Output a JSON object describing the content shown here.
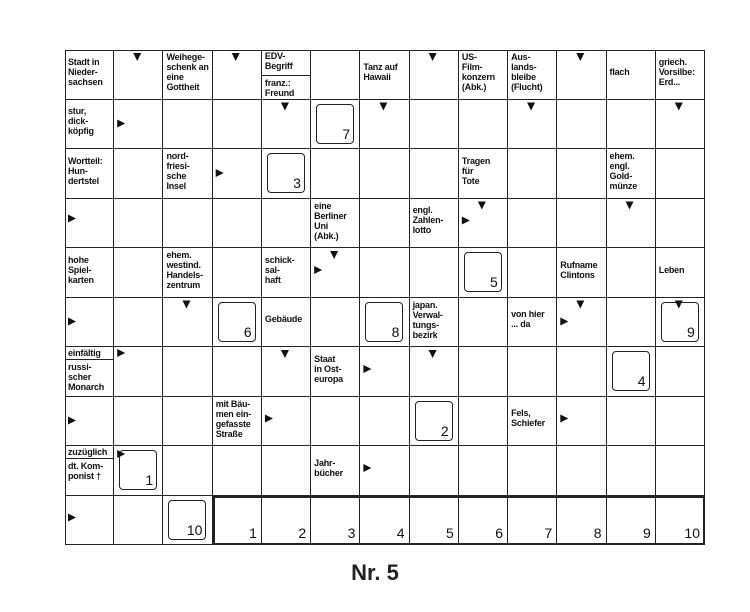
{
  "title": "Nr. 5",
  "grid": {
    "rows": [
      [
        {
          "clue": "Stadt in\nNieder-\nsachsen"
        },
        null,
        {
          "clue": "Weihege-\nschenk an\neine\nGottheit"
        },
        null,
        {
          "clues": [
            "EDV-\nBegriff",
            "franz.:\nFreund"
          ]
        },
        null,
        {
          "clue": "Tanz auf\nHawaii"
        },
        null,
        {
          "clue": "US-\nFilm-\nkonzern\n(Abk.)"
        },
        {
          "clue": "Aus-\nlands-\nbleibe\n(Flucht)"
        },
        null,
        {
          "clue": "flach"
        },
        {
          "clue": "griech.\nVorsilbe:\nErd..."
        }
      ],
      [
        {
          "clue": "stur,\ndick-\nköpfig"
        },
        null,
        null,
        null,
        null,
        {
          "box": 7
        },
        null,
        null,
        null,
        null,
        null,
        null,
        null
      ],
      [
        {
          "clue": "Wortteil:\nHun-\ndertstel"
        },
        null,
        {
          "clue": "nord-\nfriesi-\nsche\nInsel"
        },
        null,
        {
          "box": 3
        },
        null,
        null,
        null,
        {
          "clue": "Tragen\nfür\nTote"
        },
        null,
        null,
        {
          "clue": "ehem.\nengl.\nGold-\nmünze"
        },
        null
      ],
      [
        null,
        null,
        null,
        null,
        null,
        {
          "clue": "eine\nBerliner\nUni\n(Abk.)"
        },
        null,
        {
          "clue": "engl.\nZahlen-\nlotto"
        },
        null,
        null,
        null,
        null,
        null
      ],
      [
        {
          "clue": "hohe\nSpiel-\nkarten"
        },
        null,
        {
          "clue": "ehem.\nwestind.\nHandels-\nzentrum"
        },
        null,
        {
          "clue": "schick-\nsal-\nhaft"
        },
        null,
        null,
        null,
        {
          "box": 5
        },
        null,
        {
          "clue": "Rufname\nClintons"
        },
        null,
        {
          "clue": "Leben"
        }
      ],
      [
        null,
        null,
        null,
        {
          "box": 6
        },
        {
          "clue": "Gebäude"
        },
        null,
        {
          "box": 8
        },
        {
          "clue": "japan.\nVerwal-\ntungs-\nbezirk"
        },
        null,
        {
          "clue": "von hier\n... da"
        },
        null,
        null,
        {
          "box": 9
        }
      ],
      [
        {
          "clues": [
            "einfältig",
            "russi-\nscher\nMonarch"
          ]
        },
        null,
        null,
        null,
        null,
        {
          "clue": "Staat\nin Ost-\neuropa"
        },
        null,
        null,
        null,
        null,
        null,
        {
          "box": 4
        },
        null
      ],
      [
        null,
        null,
        null,
        {
          "clue": "mit Bäu-\nmen ein-\ngefasste\nStraße"
        },
        null,
        null,
        null,
        {
          "box": 2
        },
        null,
        {
          "clue": "Fels,\nSchiefer"
        },
        null,
        null,
        null
      ],
      [
        {
          "clues": [
            "zuzüglich",
            "dt. Kom-\nponist †"
          ]
        },
        {
          "box": 1
        },
        null,
        null,
        null,
        {
          "clue": "Jahr-\nbücher"
        },
        null,
        null,
        null,
        null,
        null,
        null,
        null
      ],
      [
        null,
        null,
        {
          "box": 10
        },
        {
          "solution": 1
        },
        {
          "solution": 2
        },
        {
          "solution": 3
        },
        {
          "solution": 4
        },
        {
          "solution": 5
        },
        {
          "solution": 6
        },
        {
          "solution": 7
        },
        {
          "solution": 8
        },
        {
          "solution": 9
        },
        {
          "solution": 10
        }
      ]
    ]
  }
}
